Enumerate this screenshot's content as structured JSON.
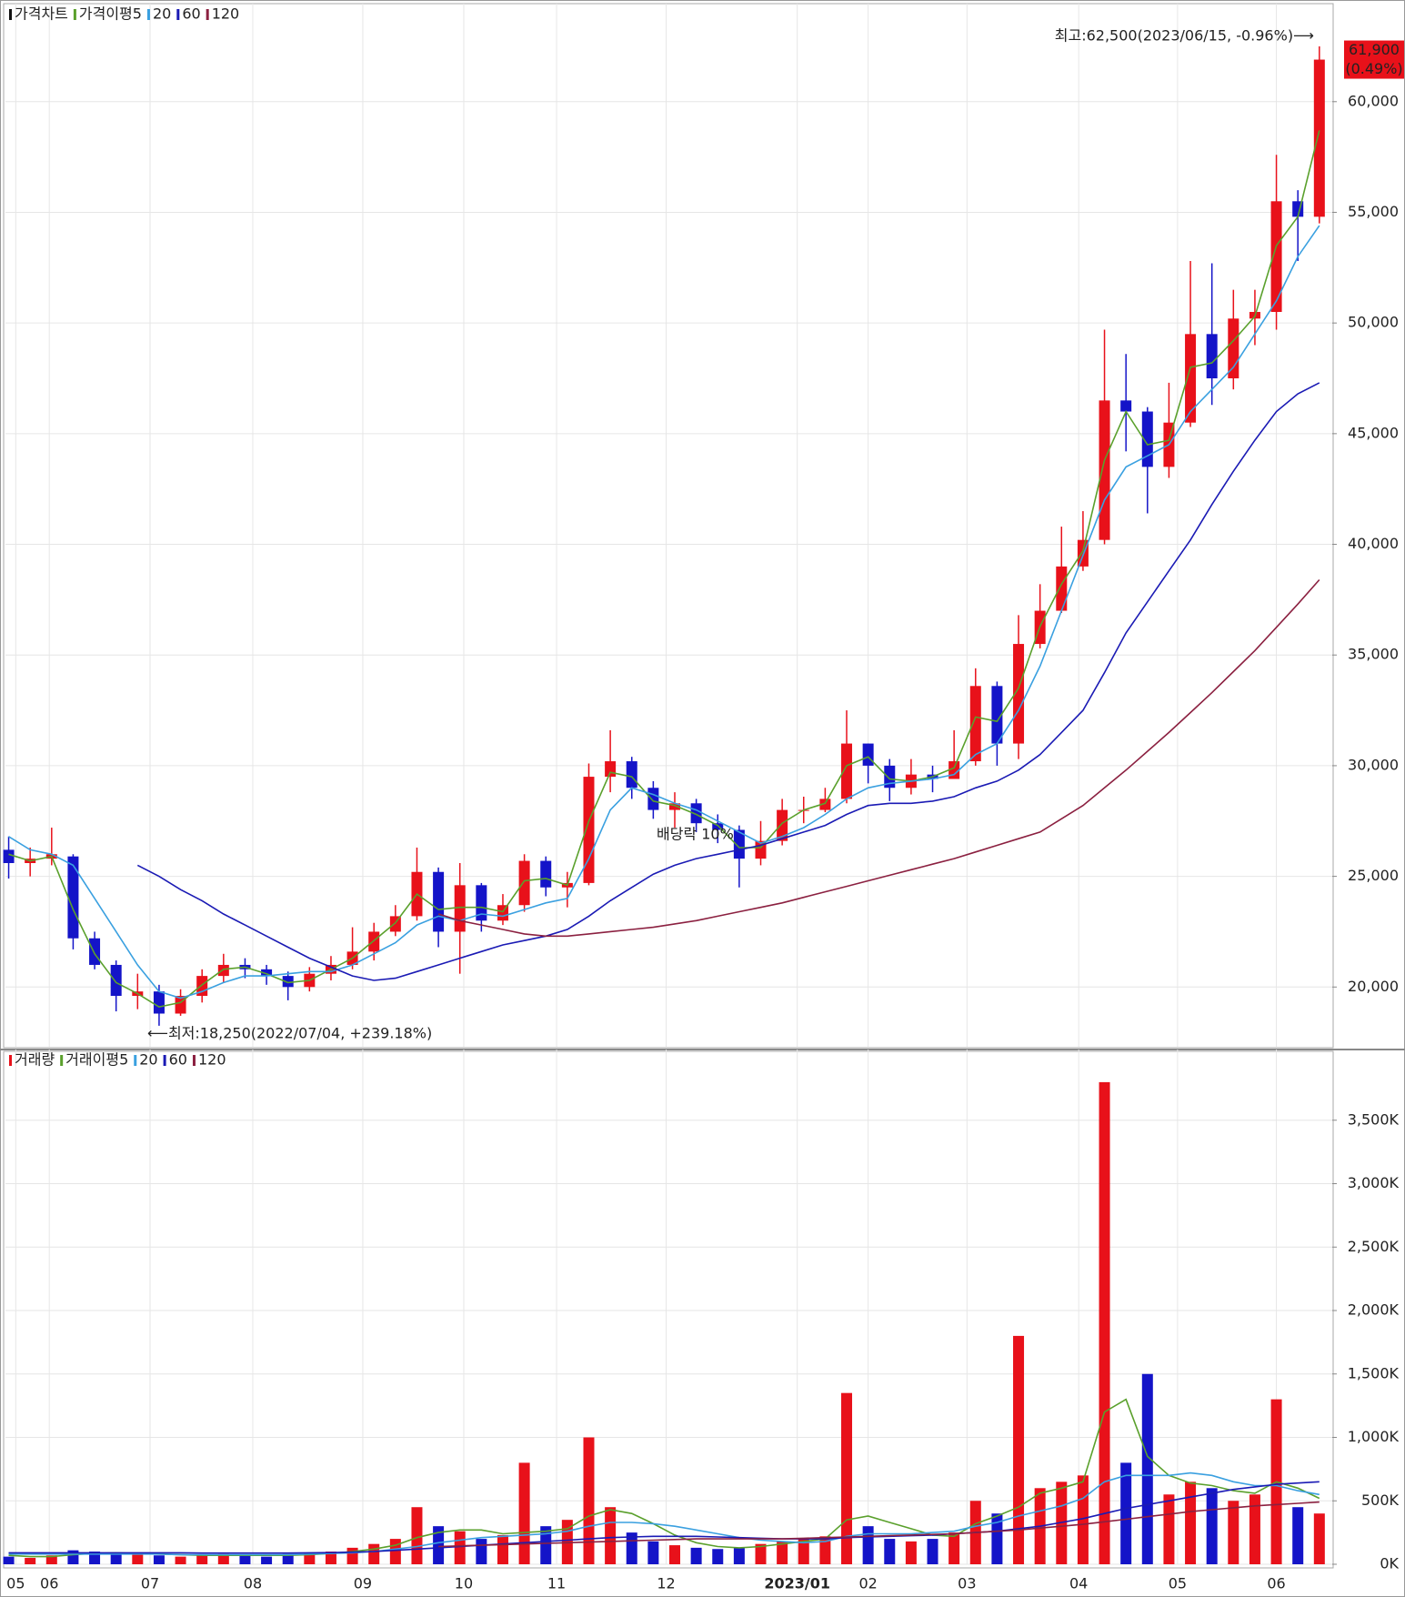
{
  "chart_data": [
    {
      "type": "candlestick",
      "legend_label": "가격차트",
      "ma_label": "가격이평",
      "up_color": "#e8111a",
      "down_color": "#1414c8",
      "x": [
        0,
        1,
        2,
        3,
        4,
        5,
        6,
        7,
        8,
        9,
        10,
        11,
        12,
        13,
        14,
        15,
        16,
        17,
        18,
        19,
        20,
        21,
        22,
        23,
        24,
        25,
        26,
        27,
        28,
        29,
        30,
        31,
        32,
        33,
        34,
        35,
        36,
        37,
        38,
        39,
        40,
        41,
        42,
        43,
        44,
        45,
        46,
        47,
        48,
        49,
        50,
        51,
        52,
        53,
        54,
        55,
        56,
        57,
        58,
        59,
        60,
        61
      ],
      "open": [
        26200,
        25600,
        25800,
        25900,
        22200,
        21000,
        19600,
        19800,
        18800,
        19600,
        20500,
        21000,
        20800,
        20500,
        20000,
        20600,
        21000,
        21600,
        22500,
        23200,
        25200,
        22500,
        24600,
        23000,
        23700,
        25700,
        24500,
        24700,
        29500,
        30200,
        29000,
        28000,
        28300,
        27400,
        27100,
        25800,
        26600,
        28000,
        28000,
        28500,
        31000,
        30000,
        29000,
        29600,
        29400,
        30200,
        33600,
        31000,
        35500,
        37000,
        39000,
        40200,
        46500,
        46000,
        43500,
        45500,
        49500,
        47500,
        50200,
        50500,
        55500,
        54800
      ],
      "high": [
        26800,
        26300,
        27200,
        26000,
        22500,
        21200,
        20600,
        20100,
        19900,
        20800,
        21500,
        21300,
        21000,
        20700,
        20900,
        21400,
        22700,
        22900,
        23700,
        26300,
        25400,
        25600,
        24700,
        24200,
        26000,
        25900,
        25200,
        30100,
        31600,
        30400,
        29300,
        28800,
        28500,
        27800,
        27300,
        27500,
        28500,
        28600,
        29000,
        32500,
        31000,
        30300,
        30300,
        30000,
        31600,
        34400,
        33800,
        36800,
        38200,
        40800,
        41500,
        49700,
        48600,
        46200,
        47300,
        52800,
        52700,
        51500,
        51500,
        57600,
        56000,
        62500
      ],
      "low": [
        24900,
        25000,
        25500,
        21700,
        20800,
        18900,
        19000,
        18250,
        18700,
        19300,
        20200,
        20400,
        20100,
        19400,
        19800,
        20300,
        20800,
        21200,
        22300,
        23000,
        21800,
        20600,
        22500,
        22800,
        23400,
        24100,
        23600,
        24600,
        28800,
        28500,
        27600,
        27200,
        27000,
        26500,
        24500,
        25500,
        26400,
        27400,
        27900,
        28300,
        29200,
        28400,
        28700,
        28800,
        29400,
        30000,
        30000,
        30300,
        35300,
        36900,
        38800,
        40000,
        44200,
        41400,
        43000,
        45300,
        46300,
        47000,
        49000,
        49700,
        52800,
        54500
      ],
      "close": [
        25600,
        25800,
        26000,
        22200,
        21000,
        19600,
        19800,
        18800,
        19600,
        20500,
        21000,
        20800,
        20500,
        20000,
        20600,
        21000,
        21600,
        22500,
        23200,
        25200,
        22500,
        24600,
        23000,
        23700,
        25700,
        24500,
        24700,
        29500,
        30200,
        29000,
        28000,
        28300,
        27400,
        27100,
        25800,
        26600,
        28000,
        28000,
        28500,
        31000,
        30000,
        29000,
        29600,
        29400,
        30200,
        33600,
        31000,
        35500,
        37000,
        39000,
        40200,
        46500,
        46000,
        43500,
        45500,
        49500,
        47500,
        50200,
        50500,
        55500,
        54800,
        61900
      ],
      "series": [
        {
          "name": "5",
          "color": "#5aa02c",
          "values": [
            26000,
            25700,
            25900,
            23500,
            21500,
            20200,
            19700,
            19100,
            19300,
            20100,
            20800,
            20900,
            20600,
            20200,
            20300,
            20800,
            21300,
            22100,
            22900,
            24200,
            23500,
            23600,
            23600,
            23400,
            24800,
            24900,
            24600,
            27500,
            29700,
            29500,
            28400,
            28200,
            27800,
            27300,
            26300,
            26300,
            27400,
            28000,
            28300,
            30000,
            30400,
            29400,
            29300,
            29500,
            29900,
            32200,
            32000,
            33500,
            36300,
            38200,
            39700,
            43800,
            46000,
            44500,
            44700,
            48000,
            48200,
            49200,
            50300,
            53500,
            54800,
            58700
          ]
        },
        {
          "name": "20",
          "color": "#3aa0e0",
          "values": [
            26800,
            26200,
            26000,
            25500,
            24000,
            22500,
            21000,
            19800,
            19500,
            19800,
            20200,
            20500,
            20500,
            20600,
            20700,
            20700,
            21000,
            21500,
            22000,
            22800,
            23200,
            23000,
            23300,
            23200,
            23500,
            23800,
            24000,
            25800,
            28000,
            29000,
            28700,
            28300,
            28000,
            27500,
            27000,
            26500,
            26800,
            27200,
            27800,
            28500,
            29000,
            29200,
            29300,
            29400,
            29600,
            30500,
            31000,
            32500,
            34500,
            37000,
            39500,
            42000,
            43500,
            44000,
            44500,
            46000,
            47000,
            48000,
            49500,
            51000,
            53000,
            54400
          ]
        },
        {
          "name": "60",
          "color": "#1a1ab4",
          "values": [
            null,
            null,
            null,
            null,
            null,
            null,
            25500,
            25000,
            24400,
            23900,
            23300,
            22800,
            22300,
            21800,
            21300,
            20900,
            20500,
            20300,
            20400,
            20700,
            21000,
            21300,
            21600,
            21900,
            22100,
            22300,
            22600,
            23200,
            23900,
            24500,
            25100,
            25500,
            25800,
            26000,
            26200,
            26400,
            26700,
            27000,
            27300,
            27800,
            28200,
            28300,
            28300,
            28400,
            28600,
            29000,
            29300,
            29800,
            30500,
            31500,
            32500,
            34200,
            36000,
            37400,
            38800,
            40200,
            41800,
            43300,
            44700,
            46000,
            46800,
            47300
          ]
        },
        {
          "name": "120",
          "color": "#8b2040",
          "values": [
            null,
            null,
            null,
            null,
            null,
            null,
            null,
            null,
            null,
            null,
            null,
            null,
            null,
            null,
            null,
            null,
            null,
            null,
            null,
            null,
            23300,
            23000,
            22800,
            22600,
            22400,
            22300,
            22300,
            22400,
            22500,
            22600,
            22700,
            22850,
            23000,
            23200,
            23400,
            23600,
            23800,
            24050,
            24300,
            24550,
            24800,
            25050,
            25300,
            25550,
            25800,
            26100,
            26400,
            26700,
            27000,
            27600,
            28200,
            29000,
            29800,
            30650,
            31500,
            32400,
            33300,
            34250,
            35200,
            36250,
            37300,
            38400
          ]
        }
      ],
      "xlim": [
        -0.15,
        61.6
      ],
      "ylim": [
        17300,
        64100
      ],
      "yticks": [
        {
          "value": 20000,
          "label": "20,000"
        },
        {
          "value": 25000,
          "label": "25,000"
        },
        {
          "value": 30000,
          "label": "30,000"
        },
        {
          "value": 35000,
          "label": "35,000"
        },
        {
          "value": 40000,
          "label": "40,000"
        },
        {
          "value": 45000,
          "label": "45,000"
        },
        {
          "value": 50000,
          "label": "50,000"
        },
        {
          "value": 55000,
          "label": "55,000"
        },
        {
          "value": 60000,
          "label": "60,000"
        }
      ],
      "grid": true,
      "annotations": {
        "high": "최고:62,500(2023/06/15, -0.96%)⟶",
        "low": "⟵최저:18,250(2022/07/04, +239.18%)",
        "event": "배당락 10%",
        "last_price": "61,900",
        "last_change": "(0.49%)"
      }
    },
    {
      "type": "bar",
      "legend_label": "거래량",
      "ma_label": "거래이평",
      "x": [
        0,
        1,
        2,
        3,
        4,
        5,
        6,
        7,
        8,
        9,
        10,
        11,
        12,
        13,
        14,
        15,
        16,
        17,
        18,
        19,
        20,
        21,
        22,
        23,
        24,
        25,
        26,
        27,
        28,
        29,
        30,
        31,
        32,
        33,
        34,
        35,
        36,
        37,
        38,
        39,
        40,
        41,
        42,
        43,
        44,
        45,
        46,
        47,
        48,
        49,
        50,
        51,
        52,
        53,
        54,
        55,
        56,
        57,
        58,
        59,
        60,
        61
      ],
      "values": [
        60,
        50,
        70,
        110,
        100,
        90,
        80,
        70,
        60,
        70,
        80,
        70,
        60,
        80,
        90,
        100,
        130,
        160,
        200,
        450,
        300,
        260,
        200,
        230,
        800,
        300,
        350,
        1000,
        450,
        250,
        180,
        150,
        130,
        120,
        130,
        160,
        180,
        200,
        220,
        1350,
        300,
        200,
        180,
        200,
        250,
        500,
        400,
        1800,
        600,
        650,
        700,
        3800,
        800,
        1500,
        550,
        650,
        600,
        500,
        550,
        1300,
        450,
        400
      ],
      "series": [
        {
          "name": "5",
          "color": "#5aa02c",
          "values": [
            70,
            60,
            60,
            75,
            85,
            90,
            85,
            80,
            75,
            70,
            70,
            70,
            70,
            70,
            75,
            85,
            100,
            120,
            150,
            210,
            250,
            270,
            270,
            240,
            250,
            260,
            280,
            380,
            430,
            400,
            320,
            230,
            170,
            140,
            130,
            140,
            160,
            180,
            200,
            350,
            380,
            330,
            280,
            230,
            220,
            320,
            380,
            450,
            560,
            600,
            650,
            1200,
            1300,
            850,
            700,
            640,
            620,
            580,
            560,
            650,
            600,
            520
          ]
        },
        {
          "name": "20",
          "color": "#3aa0e0",
          "values": [
            80,
            80,
            80,
            80,
            80,
            80,
            80,
            80,
            75,
            75,
            75,
            75,
            75,
            75,
            80,
            85,
            90,
            100,
            120,
            140,
            170,
            190,
            210,
            220,
            230,
            240,
            260,
            300,
            330,
            330,
            320,
            300,
            270,
            240,
            210,
            190,
            180,
            170,
            180,
            220,
            240,
            240,
            240,
            250,
            260,
            300,
            330,
            380,
            420,
            460,
            520,
            650,
            700,
            700,
            700,
            720,
            700,
            650,
            620,
            620,
            580,
            550
          ]
        },
        {
          "name": "60",
          "color": "#1a1ab4",
          "values": [
            90,
            90,
            90,
            90,
            90,
            90,
            90,
            90,
            90,
            88,
            88,
            88,
            88,
            88,
            90,
            92,
            95,
            100,
            110,
            120,
            130,
            140,
            150,
            160,
            170,
            180,
            190,
            200,
            210,
            215,
            220,
            220,
            220,
            215,
            210,
            205,
            200,
            200,
            200,
            210,
            215,
            220,
            225,
            230,
            240,
            250,
            260,
            280,
            300,
            330,
            360,
            400,
            440,
            470,
            500,
            530,
            560,
            590,
            610,
            630,
            640,
            650
          ]
        },
        {
          "name": "120",
          "color": "#8b2040",
          "values": [
            null,
            null,
            null,
            null,
            null,
            null,
            null,
            null,
            null,
            null,
            null,
            null,
            null,
            null,
            null,
            null,
            null,
            null,
            null,
            null,
            140,
            145,
            150,
            155,
            160,
            165,
            170,
            175,
            180,
            185,
            190,
            195,
            200,
            200,
            200,
            200,
            200,
            205,
            210,
            215,
            220,
            225,
            230,
            235,
            240,
            250,
            260,
            270,
            285,
            300,
            315,
            335,
            355,
            375,
            395,
            415,
            430,
            445,
            460,
            470,
            480,
            490
          ]
        }
      ],
      "xlim": [
        -0.15,
        61.6
      ],
      "ylim": [
        0,
        4000
      ],
      "yticks": [
        {
          "value": 0,
          "label": "0K"
        },
        {
          "value": 500,
          "label": "500K"
        },
        {
          "value": 1000,
          "label": "1,000K"
        },
        {
          "value": 1500,
          "label": "1,500K"
        },
        {
          "value": 2000,
          "label": "2,000K"
        },
        {
          "value": 2500,
          "label": "2,500K"
        },
        {
          "value": 3000,
          "label": "3,000K"
        },
        {
          "value": 3500,
          "label": "3,500K"
        }
      ],
      "xticks": [
        {
          "value": 0.33,
          "label": "05"
        },
        {
          "value": 1.89,
          "label": "06"
        },
        {
          "value": 6.58,
          "label": "07"
        },
        {
          "value": 11.36,
          "label": "08"
        },
        {
          "value": 16.48,
          "label": "09"
        },
        {
          "value": 21.18,
          "label": "10"
        },
        {
          "value": 25.5,
          "label": "11"
        },
        {
          "value": 30.6,
          "label": "12"
        },
        {
          "value": 36.7,
          "label": "2023/01"
        },
        {
          "value": 40.0,
          "label": "02"
        },
        {
          "value": 44.6,
          "label": "03"
        },
        {
          "value": 49.8,
          "label": "04"
        },
        {
          "value": 54.4,
          "label": "05"
        },
        {
          "value": 59.0,
          "label": "06"
        }
      ],
      "grid": true
    }
  ]
}
